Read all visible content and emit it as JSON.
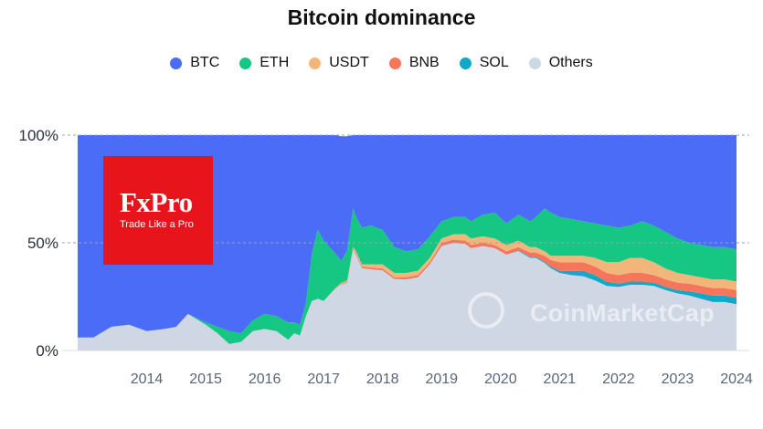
{
  "chart_data": {
    "type": "area",
    "stacked": true,
    "title": "Bitcoin dominance",
    "ylim": [
      0,
      100
    ],
    "y_ticks": [
      "0%",
      "50%",
      "100%"
    ],
    "x_ticks": [
      "2014",
      "2015",
      "2016",
      "2017",
      "2018",
      "2019",
      "2020",
      "2021",
      "2022",
      "2023",
      "2024"
    ],
    "x_range": [
      2013.33,
      2024.5
    ],
    "legend_position": "top-center",
    "grid": "dashed horizontal at 0/50/100%",
    "x": [
      2013.33,
      2013.6,
      2013.9,
      2014.2,
      2014.5,
      2014.8,
      2015.0,
      2015.2,
      2015.5,
      2015.7,
      2015.9,
      2016.1,
      2016.3,
      2016.5,
      2016.7,
      2016.9,
      2017.0,
      2017.1,
      2017.2,
      2017.3,
      2017.4,
      2017.5,
      2017.6,
      2017.7,
      2017.8,
      2017.9,
      2018.0,
      2018.05,
      2018.15,
      2018.3,
      2018.5,
      2018.7,
      2018.9,
      2019.1,
      2019.3,
      2019.5,
      2019.7,
      2019.9,
      2020.0,
      2020.2,
      2020.4,
      2020.6,
      2020.8,
      2021.0,
      2021.1,
      2021.25,
      2021.35,
      2021.5,
      2021.7,
      2021.9,
      2022.1,
      2022.3,
      2022.5,
      2022.7,
      2022.9,
      2023.1,
      2023.3,
      2023.5,
      2023.7,
      2023.9,
      2024.1,
      2024.3,
      2024.5
    ],
    "series": [
      {
        "name": "BTC",
        "color": "#4a6cf7",
        "values": [
          94,
          94,
          89,
          88,
          91,
          90,
          89,
          83,
          87,
          89,
          91,
          92,
          86,
          83,
          84,
          87,
          87,
          88,
          78,
          55,
          44,
          49,
          52,
          55,
          58,
          53,
          34,
          38,
          43,
          42,
          44,
          52,
          54,
          53,
          47,
          40,
          38,
          38,
          40,
          37,
          36,
          41,
          37,
          40,
          38,
          34,
          36,
          38,
          39,
          40,
          41,
          42,
          43,
          42,
          40,
          42,
          45,
          48,
          50,
          51,
          52,
          52,
          53
        ]
      },
      {
        "name": "ETH",
        "color": "#16c784",
        "values": [
          0,
          0,
          0,
          0,
          0,
          0,
          0,
          0,
          1,
          3,
          6,
          4,
          5,
          7,
          7,
          8,
          5,
          5,
          6,
          22,
          32,
          28,
          22,
          16,
          10,
          14,
          18,
          16,
          17,
          18,
          16,
          12,
          10,
          10,
          10,
          8,
          8,
          8,
          8,
          10,
          12,
          10,
          12,
          12,
          14,
          20,
          20,
          18,
          17,
          16,
          16,
          17,
          16,
          15,
          17,
          17,
          17,
          16,
          15,
          15,
          15,
          15,
          15
        ]
      },
      {
        "name": "USDT",
        "color": "#f3b67a",
        "values": [
          0,
          0,
          0,
          0,
          0,
          0,
          0,
          0,
          0,
          0,
          0,
          0,
          0,
          0,
          0,
          0,
          0,
          0,
          0,
          0,
          0,
          0,
          0.3,
          0.5,
          0.5,
          0.5,
          0.8,
          1,
          1,
          1.5,
          2,
          2,
          2,
          2,
          2,
          2,
          2.5,
          3,
          3,
          3,
          3,
          3,
          3,
          2.5,
          2.5,
          2,
          2,
          3,
          3,
          3,
          4,
          5,
          6,
          7,
          7,
          6,
          5,
          4.5,
          4,
          4,
          4,
          4,
          4
        ]
      },
      {
        "name": "BNB",
        "color": "#f6755b",
        "values": [
          0,
          0,
          0,
          0,
          0,
          0,
          0,
          0,
          0,
          0,
          0,
          0,
          0,
          0,
          0,
          0,
          0,
          0,
          0,
          0,
          0,
          0,
          0,
          0,
          0.3,
          0.5,
          0.5,
          0.7,
          0.8,
          0.8,
          0.8,
          0.8,
          1,
          1,
          1,
          1.5,
          1.5,
          1.5,
          1.5,
          1.5,
          1.5,
          1.5,
          1.5,
          2,
          2,
          3,
          3,
          4,
          4,
          4,
          4,
          4,
          4,
          4,
          4,
          3.5,
          3.5,
          3.5,
          3.5,
          3.5,
          3.5,
          3.5,
          3.5
        ]
      },
      {
        "name": "SOL",
        "color": "#12a9c8",
        "values": [
          0,
          0,
          0,
          0,
          0,
          0,
          0,
          0,
          0,
          0,
          0,
          0,
          0,
          0,
          0,
          0,
          0,
          0,
          0,
          0,
          0,
          0,
          0,
          0,
          0,
          0,
          0,
          0,
          0,
          0,
          0,
          0,
          0,
          0,
          0,
          0,
          0,
          0,
          0,
          0,
          0,
          0,
          0.3,
          0.5,
          0.5,
          0.5,
          0.8,
          1,
          2,
          2.5,
          2.5,
          2,
          1.5,
          1.5,
          1.5,
          1.5,
          1.5,
          1.5,
          2,
          2.5,
          3,
          3,
          3
        ]
      },
      {
        "name": "Others",
        "color": "#cfd6e4",
        "values": [
          6,
          6,
          11,
          12,
          9,
          10,
          11,
          17,
          12,
          8,
          3,
          4,
          9,
          10,
          9,
          5,
          8,
          7,
          16,
          23,
          24,
          23,
          25.7,
          28.5,
          30.7,
          31.5,
          46.7,
          44.3,
          38.2,
          37.7,
          37.2,
          33.2,
          33,
          34,
          40,
          48.5,
          50,
          49.5,
          47.5,
          48.5,
          47.5,
          44.5,
          46.2,
          43,
          43,
          40.5,
          38.2,
          36,
          35,
          34.5,
          32.5,
          30,
          29.5,
          30.5,
          30.5,
          30,
          28,
          26.5,
          25.5,
          24,
          22.5,
          22.5,
          21.5
        ]
      }
    ]
  },
  "logo": {
    "name": "FxPro",
    "tagline": "Trade Like a Pro"
  },
  "watermark": "CoinMarketCap"
}
